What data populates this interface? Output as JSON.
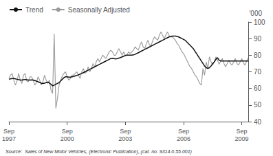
{
  "chart_data": {
    "type": "line",
    "ylabel": "'000",
    "annotations": [
      "Source:  Sales of New Motor Vehicles, (Electronic Publication), (cat. no. 9314.0.55.001)"
    ],
    "legend": "upper left",
    "grid": false,
    "ylim": [
      40,
      100
    ],
    "yticks": [
      40,
      50,
      60,
      70,
      80,
      90,
      100
    ],
    "categories": [
      "Sep\n1997",
      null,
      null,
      null,
      null,
      null,
      null,
      null,
      null,
      null,
      null,
      null,
      null,
      null,
      null,
      null,
      null,
      null,
      null,
      null,
      null,
      null,
      null,
      null,
      null,
      null,
      null,
      null,
      null,
      null,
      null,
      null,
      null,
      null,
      null,
      null,
      "Sep\n2000",
      null,
      null,
      null,
      null,
      null,
      null,
      null,
      null,
      null,
      null,
      null,
      null,
      null,
      null,
      null,
      null,
      null,
      null,
      null,
      null,
      null,
      null,
      null,
      null,
      null,
      null,
      null,
      null,
      null,
      null,
      null,
      null,
      null,
      null,
      null,
      "Sep\n2003",
      null,
      null,
      null,
      null,
      null,
      null,
      null,
      null,
      null,
      null,
      null,
      null,
      null,
      null,
      null,
      null,
      null,
      null,
      null,
      null,
      null,
      null,
      null,
      null,
      null,
      null,
      null,
      null,
      null,
      null,
      null,
      null,
      null,
      null,
      null,
      "Sep\n2006",
      null,
      null,
      null,
      null,
      null,
      null,
      null,
      null,
      null,
      null,
      null,
      null,
      null,
      null,
      null,
      null,
      null,
      null,
      null,
      null,
      null,
      null,
      null,
      null,
      null,
      null,
      null,
      null,
      null,
      null,
      null,
      null,
      null,
      null,
      null,
      "Sep\n2009",
      null,
      null,
      null,
      null
    ],
    "series": [
      {
        "name": "Trend",
        "color": "#111111",
        "values": [
          65.5,
          65.8,
          66.0,
          66.0,
          65.8,
          65.5,
          65.3,
          65.0,
          65.0,
          65.2,
          65.4,
          65.2,
          65.0,
          65.0,
          65.1,
          65.0,
          64.7,
          64.4,
          64.0,
          63.6,
          63.2,
          63.0,
          63.2,
          63.5,
          63.8,
          63.2,
          62.5,
          61.5,
          62.0,
          62.5,
          63.0,
          63.5,
          64.5,
          65.5,
          66.5,
          67.0,
          67.0,
          66.8,
          66.8,
          67.0,
          67.2,
          67.5,
          67.8,
          68.2,
          68.6,
          69.0,
          69.5,
          70.0,
          70.5,
          71.0,
          71.5,
          72.0,
          72.5,
          73.0,
          73.5,
          74.0,
          74.5,
          75.0,
          75.5,
          76.0,
          76.5,
          77.0,
          77.5,
          78.0,
          78.2,
          78.0,
          77.8,
          78.0,
          78.3,
          78.6,
          79.0,
          79.4,
          79.8,
          80.0,
          80.0,
          80.0,
          80.0,
          80.2,
          80.5,
          81.0,
          81.5,
          82.0,
          82.5,
          83.0,
          83.5,
          84.0,
          84.5,
          85.0,
          85.5,
          86.0,
          86.5,
          87.0,
          87.5,
          88.0,
          88.5,
          89.0,
          89.5,
          90.0,
          90.5,
          91.0,
          91.2,
          91.5,
          91.5,
          91.5,
          91.3,
          91.0,
          90.5,
          90.0,
          89.5,
          89.0,
          88.0,
          87.0,
          86.0,
          85.0,
          84.0,
          82.5,
          81.0,
          79.5,
          78.0,
          76.5,
          75.0,
          73.5,
          72.5,
          72.0,
          72.5,
          73.5,
          75.0,
          76.0,
          77.5,
          78.5,
          77.0,
          76.5,
          76.5,
          76.5,
          76.5,
          76.5,
          76.5,
          76.5,
          76.5,
          76.5,
          76.5,
          76.5,
          76.5,
          76.5,
          76.5,
          76.5,
          76.5,
          76.5,
          76.5
        ]
      },
      {
        "name": "Seasonally Adjusted",
        "color": "#999999",
        "values": [
          66.0,
          68.0,
          69.0,
          65.0,
          62.0,
          64.5,
          69.0,
          65.0,
          63.0,
          68.0,
          69.0,
          64.5,
          64.0,
          67.0,
          67.0,
          65.0,
          62.0,
          63.5,
          67.0,
          65.0,
          62.0,
          64.0,
          68.0,
          65.0,
          63.0,
          65.0,
          59.0,
          57.0,
          93.0,
          48.0,
          54.0,
          62.0,
          65.0,
          67.5,
          69.0,
          70.0,
          67.0,
          65.0,
          66.0,
          68.0,
          68.0,
          69.0,
          70.0,
          68.0,
          66.0,
          70.0,
          72.0,
          69.0,
          70.0,
          73.0,
          70.0,
          72.0,
          75.0,
          73.0,
          76.0,
          78.0,
          76.0,
          78.0,
          80.0,
          79.0,
          78.0,
          80.0,
          82.0,
          83.0,
          82.0,
          80.0,
          80.0,
          82.0,
          84.0,
          82.0,
          80.0,
          82.0,
          80.0,
          80.0,
          82.0,
          81.0,
          82.0,
          83.0,
          85.0,
          84.0,
          83.0,
          86.0,
          88.0,
          85.0,
          84.0,
          87.0,
          89.0,
          86.0,
          86.0,
          89.0,
          91.0,
          90.0,
          89.0,
          92.0,
          94.0,
          92.0,
          90.0,
          92.0,
          94.0,
          92.0,
          91.0,
          91.0,
          90.0,
          89.0,
          87.0,
          86.0,
          84.0,
          82.0,
          81.0,
          79.0,
          77.0,
          75.0,
          73.0,
          72.0,
          70.0,
          68.0,
          67.0,
          65.0,
          63.0,
          62.0,
          72.0,
          68.0,
          76.0,
          72.0,
          79.0,
          76.0,
          74.0,
          76.0,
          79.0,
          77.0,
          74.5,
          76.5,
          78.0,
          75.0,
          73.0,
          75.0,
          77.0,
          75.0,
          74.0,
          76.0,
          78.0,
          75.0,
          74.0,
          76.0,
          78.0,
          75.5,
          74.0,
          76.5,
          78.5
        ]
      }
    ]
  }
}
